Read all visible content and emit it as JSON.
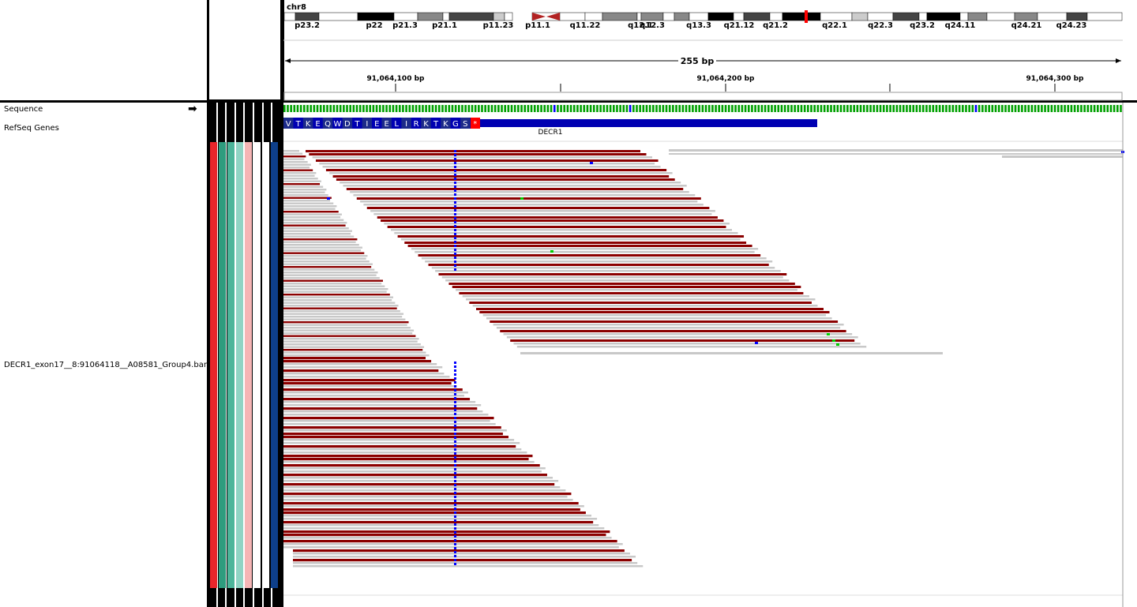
{
  "header": {
    "chromosome": "chr8",
    "span_label": "255 bp",
    "ticks": [
      "91,064,100 bp",
      "91,064,200 bp",
      "91,064,300 bp"
    ],
    "bands": [
      "p23.2",
      "p22",
      "p21.3",
      "p21.1",
      "p11.23",
      "p11.1",
      "q11.22",
      "q12.1",
      "q12.3",
      "q13.3",
      "q21.12",
      "q21.2",
      "q22.1",
      "q22.3",
      "q23.2",
      "q24.11",
      "q24.21",
      "q24.23"
    ]
  },
  "tracks": {
    "sequence": "Sequence",
    "refseq": "RefSeq Genes",
    "bam": "DECR1_exon17__8:91064118__A08581_Group4.bam"
  },
  "gene": {
    "name": "DECR1",
    "amino_acids": [
      "V",
      "T",
      "K",
      "E",
      "Q",
      "W",
      "D",
      "T",
      "I",
      "E",
      "E",
      "L",
      "I",
      "R",
      "K",
      "T",
      "K",
      "G",
      "S",
      "*"
    ]
  },
  "colors": {
    "read_gray": "#c8c8c8",
    "read_red": "#8b0000",
    "gene_blue": "#0000b2",
    "mismatch_blue": "#0000ff",
    "stop_red": "#ff0000",
    "attr_swatches": [
      "#e8262b",
      "#2e9c7e",
      "#4cb59a",
      "#8fd4c4",
      "#f5b5b5",
      "#ffffff",
      "#ffffff",
      "#0e3f8a"
    ]
  },
  "icons": {
    "strand": "arrow-right-icon"
  }
}
